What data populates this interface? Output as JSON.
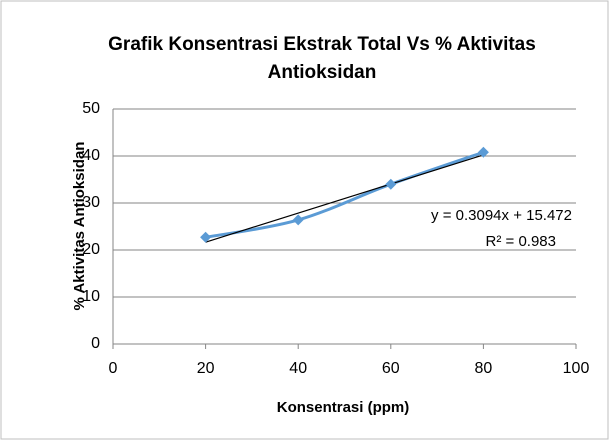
{
  "chart_data": {
    "type": "scatter",
    "title": [
      "Grafik Konsentrasi Ekstrak Total Vs % Aktivitas",
      "Antioksidan"
    ],
    "xlabel": "Konsentrasi (ppm)",
    "ylabel": "% Aktivitas Antioksidan",
    "series": [
      {
        "name": "% Aktivitas Antioksidan",
        "color": "#5b9bd5",
        "x": [
          20,
          40,
          60,
          80
        ],
        "values": [
          22.7,
          26.4,
          34.0,
          40.8
        ]
      }
    ],
    "xlim": [
      0,
      100
    ],
    "xticks": [
      0,
      20,
      40,
      60,
      80,
      100
    ],
    "ylim": [
      0,
      50
    ],
    "yticks": [
      0,
      10,
      20,
      30,
      40,
      50
    ],
    "grid": true,
    "smooth": true,
    "trendline": {
      "slope": 0.3094,
      "intercept": 15.472,
      "color": "#000000",
      "equation": "y = 0.3094x + 15.472",
      "r2": "R² = 0.983"
    }
  }
}
